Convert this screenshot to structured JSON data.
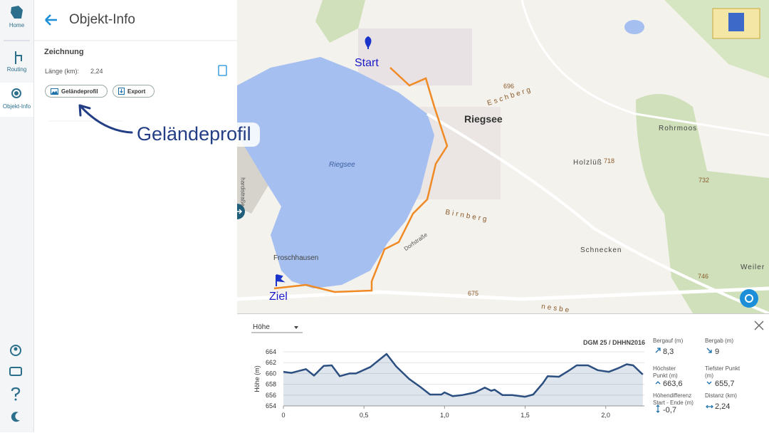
{
  "sidebar": {
    "items": [
      "Home",
      "Routing",
      "Objekt-Info"
    ]
  },
  "panel": {
    "title": "Objekt-Info",
    "section": "Zeichnung",
    "length_label": "Länge (km):",
    "length_value": "2,24",
    "buttons": [
      "Geländeprofil",
      "Export"
    ]
  },
  "annotation": "Geländeprofil",
  "map": {
    "labels": [
      "Start",
      "Ziel",
      "Riegsee",
      "Riegsee",
      "Eschberg",
      "696",
      "Rohrmoos",
      "Holzlüß",
      "718",
      "732",
      "Froschhausen",
      "Dorfstraße",
      "Birnberg",
      "675",
      "Schnecken",
      "746",
      "Weiler",
      "hardistraße",
      "nesbe"
    ]
  },
  "profile": {
    "dropdown": "Höhe",
    "source": "DGM 25 / DHHN2016",
    "stats": [
      {
        "label": "Bergauf (m)",
        "value": "8,3"
      },
      {
        "label": "Bergab (m)",
        "value": "9"
      },
      {
        "label": "Höchster Punkt (m)",
        "value": "663,6"
      },
      {
        "label": "Tiefster Punkt (m)",
        "value": "655,7"
      },
      {
        "label": "Höhendifferenz Start - Ende (m)",
        "value": "-0,7"
      },
      {
        "label": "Distanz (km)",
        "value": "2,24"
      }
    ]
  },
  "chart_data": {
    "type": "area",
    "y_label": "Höhe (m)",
    "x": [
      0,
      0.05,
      0.14,
      0.19,
      0.25,
      0.3,
      0.35,
      0.41,
      0.45,
      0.54,
      0.64,
      0.7,
      0.78,
      0.85,
      0.91,
      0.98,
      1.0,
      1.05,
      1.11,
      1.19,
      1.25,
      1.29,
      1.31,
      1.36,
      1.42,
      1.5,
      1.55,
      1.61,
      1.64,
      1.71,
      1.77,
      1.82,
      1.89,
      1.95,
      2.02,
      2.08,
      2.13,
      2.17,
      2.23
    ],
    "values": [
      660.3,
      660.1,
      660.8,
      659.6,
      661.4,
      661.5,
      659.5,
      660.0,
      660.0,
      661.2,
      663.6,
      661.3,
      659.0,
      657.5,
      656.1,
      656.1,
      656.5,
      655.8,
      656.0,
      656.5,
      657.4,
      656.8,
      657.0,
      656.0,
      656.0,
      655.7,
      656.1,
      658.2,
      659.5,
      659.4,
      660.5,
      661.5,
      661.5,
      660.6,
      660.3,
      661.0,
      661.7,
      661.5,
      659.8
    ],
    "color": "#2b4f80",
    "xlim": [
      0,
      2.24
    ],
    "xticks": [
      0,
      {
        "value": 0.5,
        "label": "0,5"
      },
      {
        "value": 1.0,
        "label": "1,0"
      },
      {
        "value": 1.5,
        "label": "1,5"
      },
      {
        "value": 2.0,
        "label": "2,0"
      }
    ],
    "ylim": [
      654,
      664
    ],
    "yticks": [
      654,
      656,
      658,
      660,
      662,
      664
    ],
    "grid": true
  }
}
